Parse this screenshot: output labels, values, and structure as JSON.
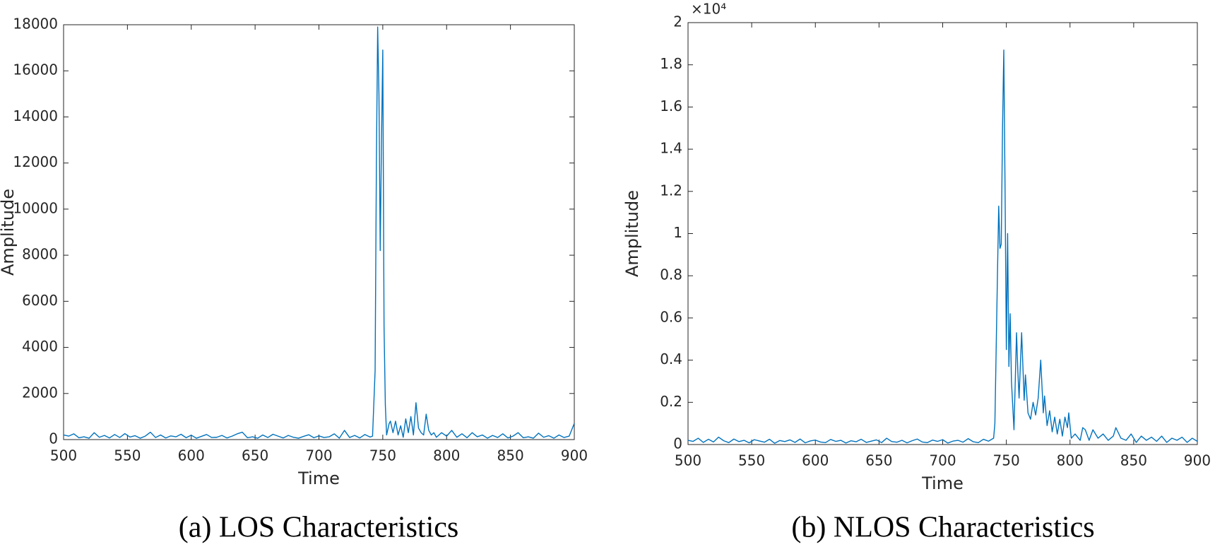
{
  "chart_data": [
    {
      "type": "line",
      "caption": "(a) LOS Characteristics",
      "xlabel": "Time",
      "ylabel": "Amplitude",
      "color": "#0072bd",
      "xlim": [
        500,
        900
      ],
      "xticks": [
        500,
        550,
        600,
        650,
        700,
        750,
        800,
        850,
        900
      ],
      "ylim": [
        0,
        18000
      ],
      "yticks": [
        0,
        2000,
        4000,
        6000,
        8000,
        10000,
        12000,
        14000,
        16000,
        18000
      ],
      "x": [
        500,
        504,
        508,
        512,
        516,
        520,
        524,
        528,
        532,
        536,
        540,
        544,
        548,
        552,
        556,
        560,
        564,
        568,
        572,
        576,
        580,
        584,
        588,
        592,
        596,
        600,
        604,
        608,
        612,
        616,
        620,
        624,
        628,
        632,
        636,
        640,
        644,
        648,
        652,
        656,
        660,
        664,
        668,
        672,
        676,
        680,
        684,
        688,
        692,
        696,
        700,
        704,
        708,
        712,
        716,
        720,
        724,
        728,
        732,
        736,
        740,
        742,
        744,
        745,
        746,
        747,
        748,
        749,
        750,
        751,
        752,
        753,
        755,
        756,
        758,
        760,
        762,
        764,
        766,
        768,
        770,
        772,
        774,
        776,
        778,
        780,
        782,
        784,
        786,
        788,
        790,
        792,
        796,
        800,
        804,
        808,
        812,
        816,
        820,
        824,
        828,
        832,
        836,
        840,
        844,
        848,
        852,
        856,
        860,
        864,
        868,
        872,
        876,
        880,
        884,
        888,
        892,
        896,
        900
      ],
      "values": [
        200,
        150,
        250,
        80,
        120,
        60,
        300,
        100,
        180,
        70,
        220,
        90,
        260,
        110,
        170,
        60,
        150,
        320,
        90,
        200,
        70,
        160,
        120,
        230,
        80,
        190,
        60,
        140,
        220,
        90,
        100,
        180,
        70,
        150,
        250,
        320,
        80,
        120,
        60,
        200,
        90,
        230,
        150,
        70,
        180,
        100,
        60,
        140,
        210,
        80,
        160,
        90,
        120,
        250,
        60,
        400,
        90,
        180,
        70,
        220,
        110,
        150,
        3000,
        12000,
        17900,
        15000,
        8200,
        13000,
        16900,
        4900,
        1500,
        200,
        700,
        800,
        300,
        800,
        200,
        600,
        100,
        900,
        300,
        1000,
        200,
        1600,
        500,
        300,
        200,
        1100,
        400,
        200,
        300,
        100,
        300,
        150,
        400,
        100,
        250,
        80,
        300,
        120,
        200,
        60,
        180,
        90,
        250,
        70,
        150,
        300,
        80,
        120,
        60,
        280,
        100,
        170,
        60,
        200,
        90,
        150,
        700
      ]
    },
    {
      "type": "line",
      "caption": "(b) NLOS Characteristics",
      "xlabel": "Time",
      "ylabel": "Amplitude",
      "y_multiplier": "×10⁴",
      "color": "#0072bd",
      "xlim": [
        500,
        900
      ],
      "xticks": [
        500,
        550,
        600,
        650,
        700,
        750,
        800,
        850,
        900
      ],
      "ylim": [
        0,
        20000
      ],
      "yticks": [
        0,
        {
          "value": 2000,
          "label": "0.2"
        },
        {
          "value": 4000,
          "label": "0.4"
        },
        {
          "value": 6000,
          "label": "0.6"
        },
        {
          "value": 8000,
          "label": "0.8"
        },
        {
          "value": 10000,
          "label": "1"
        },
        {
          "value": 12000,
          "label": "1.2"
        },
        {
          "value": 14000,
          "label": "1.4"
        },
        {
          "value": 16000,
          "label": "1.6"
        },
        {
          "value": 18000,
          "label": "1.8"
        },
        {
          "value": 20000,
          "label": "2"
        }
      ],
      "x": [
        500,
        504,
        508,
        512,
        516,
        520,
        524,
        528,
        532,
        536,
        540,
        544,
        548,
        552,
        556,
        560,
        564,
        568,
        572,
        576,
        580,
        584,
        588,
        592,
        596,
        600,
        604,
        608,
        612,
        616,
        620,
        624,
        628,
        632,
        636,
        640,
        644,
        648,
        652,
        656,
        660,
        664,
        668,
        672,
        676,
        680,
        684,
        688,
        692,
        696,
        700,
        704,
        708,
        712,
        716,
        720,
        724,
        728,
        732,
        736,
        740,
        741,
        743,
        744,
        745,
        746,
        747,
        748,
        749,
        750,
        751,
        752,
        753,
        754,
        756,
        758,
        759,
        760,
        762,
        764,
        765,
        767,
        769,
        771,
        773,
        775,
        777,
        779,
        780,
        782,
        784,
        786,
        788,
        790,
        792,
        794,
        796,
        798,
        799,
        801,
        804,
        808,
        810,
        812,
        815,
        818,
        822,
        826,
        830,
        834,
        836,
        840,
        844,
        848,
        852,
        856,
        860,
        864,
        868,
        872,
        876,
        880,
        884,
        888,
        892,
        896,
        900
      ],
      "values": [
        200,
        150,
        300,
        100,
        250,
        120,
        350,
        180,
        90,
        260,
        140,
        200,
        80,
        230,
        170,
        110,
        250,
        60,
        190,
        140,
        220,
        100,
        260,
        80,
        170,
        210,
        120,
        90,
        240,
        150,
        200,
        70,
        180,
        130,
        250,
        100,
        160,
        220,
        90,
        300,
        140,
        110,
        200,
        80,
        180,
        260,
        120,
        90,
        210,
        150,
        230,
        70,
        160,
        200,
        110,
        280,
        130,
        90,
        250,
        160,
        300,
        1000,
        8000,
        11300,
        9300,
        9500,
        15000,
        18700,
        12000,
        4500,
        10000,
        3700,
        6200,
        3000,
        700,
        5300,
        3500,
        2200,
        5300,
        2100,
        3300,
        1500,
        1200,
        2000,
        1400,
        2200,
        4000,
        1500,
        2300,
        900,
        1600,
        600,
        1300,
        500,
        1200,
        400,
        1300,
        800,
        1500,
        300,
        500,
        200,
        800,
        700,
        200,
        700,
        300,
        500,
        200,
        400,
        800,
        300,
        200,
        500,
        100,
        400,
        200,
        350,
        150,
        400,
        100,
        300,
        200,
        350,
        100,
        300,
        150
      ]
    }
  ]
}
